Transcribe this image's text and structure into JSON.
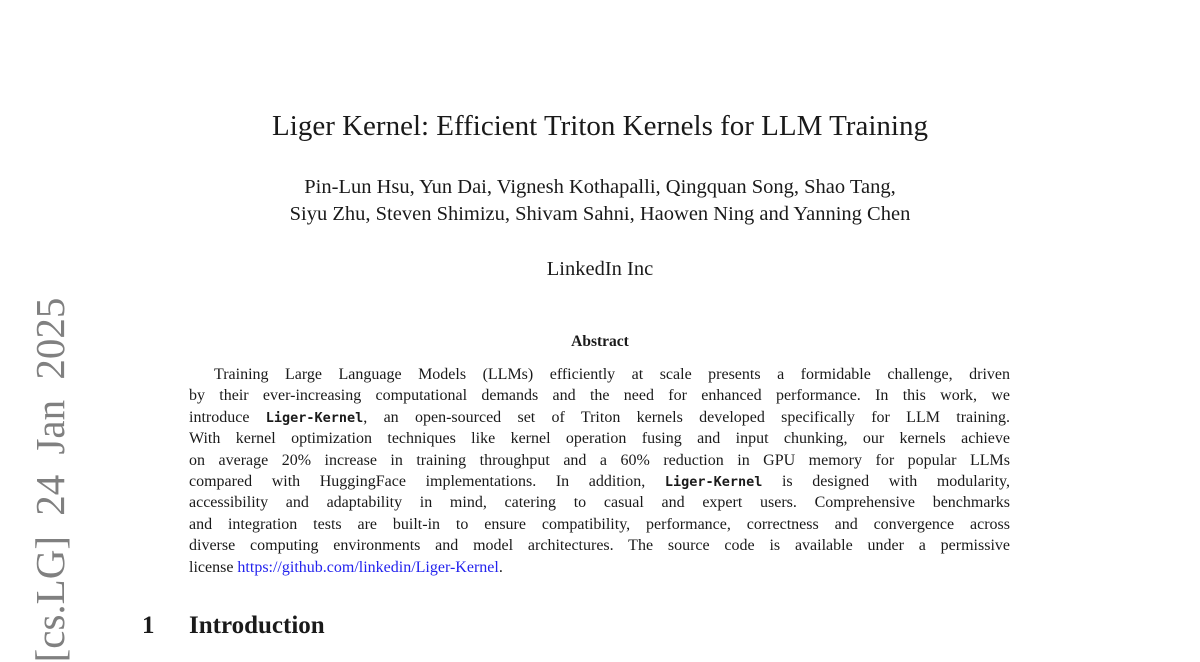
{
  "title": "Liger Kernel: Efficient Triton Kernels for LLM Training",
  "authors": {
    "line1": "Pin-Lun Hsu, Yun Dai, Vignesh Kothapalli, Qingquan Song, Shao Tang,",
    "line2": "Siyu Zhu, Steven Shimizu, Shivam Sahni, Haowen Ning and Yanning Chen"
  },
  "affiliation": "LinkedIn Inc",
  "arxiv_side_label": "[cs.LG]  24 Jan 2025",
  "abstract": {
    "heading": "Abstract",
    "lines": [
      [
        "Training Large Language Models (LLMs) efficiently at scale presents a formidable challenge, driven"
      ],
      [
        "by their ever-increasing computational demands and the need for enhanced performance. In this work, we"
      ],
      [
        "introduce ",
        "Liger-Kernel",
        ", an open-sourced set of Triton kernels developed specifically for LLM training."
      ],
      [
        "With kernel optimization techniques like kernel operation fusing and input chunking, our kernels achieve"
      ],
      [
        "on average 20% increase in training throughput and a 60% reduction in GPU memory for popular LLMs"
      ],
      [
        "compared with HuggingFace implementations. In addition, ",
        "Liger-Kernel",
        " is designed with modularity,"
      ],
      [
        "accessibility and adaptability in mind, catering to casual and expert users. Comprehensive benchmarks"
      ],
      [
        "and integration tests are built-in to ensure compatibility, performance, correctness and convergence across"
      ],
      [
        "diverse computing environments and model architectures. The source code is available under a permissive"
      ],
      [
        "license ",
        "https://github.com/linkedin/Liger-Kernel",
        "."
      ]
    ]
  },
  "section": {
    "number": "1",
    "title": "Introduction"
  },
  "colors": {
    "link": "#2222ee",
    "side_label": "#808080"
  }
}
